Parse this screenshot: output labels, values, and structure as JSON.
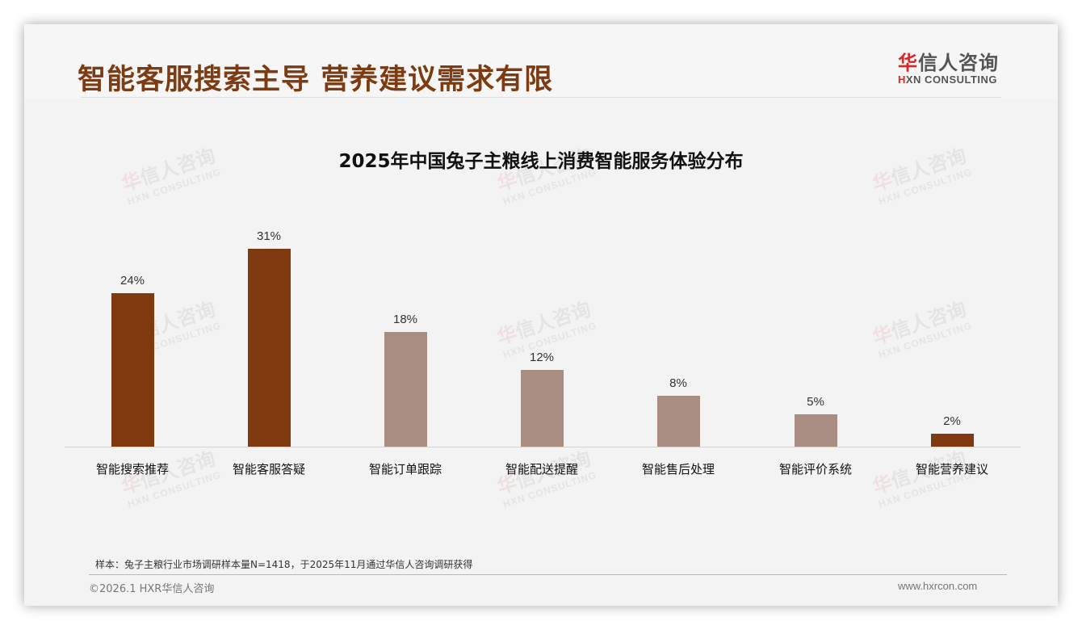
{
  "header": {
    "title": "智能客服搜索主导 营养建议需求有限",
    "logo_cn_first": "华",
    "logo_cn_rest": "信人咨询",
    "logo_en_first": "H",
    "logo_en_rest": "XN CONSULTING"
  },
  "watermark": {
    "cn_first": "华",
    "cn_rest": "信人咨询",
    "en": "HXN CONSULTING"
  },
  "colors": {
    "highlight": "#7f3a10",
    "normal": "#a98c82",
    "title": "#7e3b12"
  },
  "chart_data": {
    "type": "bar",
    "title": "2025年中国兔子主粮线上消费智能服务体验分布",
    "categories": [
      "智能搜索推荐",
      "智能客服答疑",
      "智能订单跟踪",
      "智能配送提醒",
      "智能售后处理",
      "智能评价系统",
      "智能营养建议"
    ],
    "values": [
      24,
      31,
      18,
      12,
      8,
      5,
      2
    ],
    "value_labels": [
      "24%",
      "31%",
      "18%",
      "12%",
      "8%",
      "5%",
      "2%"
    ],
    "highlighted": [
      true,
      true,
      false,
      false,
      false,
      false,
      true
    ],
    "unit": "%",
    "xlabel": "",
    "ylabel": "",
    "ylim": [
      0,
      35
    ],
    "grid": false,
    "legend": "none"
  },
  "footer": {
    "note": "样本：兔子主粮行业市场调研样本量N=1418，于2025年11月通过华信人咨询调研获得",
    "copyright": "©2026.1 HXR华信人咨询",
    "website": "www.hxrcon.com"
  }
}
